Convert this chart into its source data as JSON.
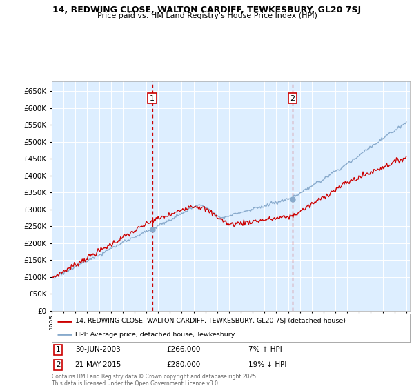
{
  "title": "14, REDWING CLOSE, WALTON CARDIFF, TEWKESBURY, GL20 7SJ",
  "subtitle": "Price paid vs. HM Land Registry's House Price Index (HPI)",
  "sale1_date": "30-JUN-2003",
  "sale1_price": 266000,
  "sale1_hpi_pct": "7% ↑ HPI",
  "sale2_date": "21-MAY-2015",
  "sale2_price": 280000,
  "sale2_hpi_pct": "19% ↓ HPI",
  "legend_line1": "14, REDWING CLOSE, WALTON CARDIFF, TEWKESBURY, GL20 7SJ (detached house)",
  "legend_line2": "HPI: Average price, detached house, Tewkesbury",
  "footer": "Contains HM Land Registry data © Crown copyright and database right 2025.\nThis data is licensed under the Open Government Licence v3.0.",
  "line_color_property": "#cc0000",
  "line_color_hpi": "#88aacc",
  "background_color": "#ddeeff",
  "grid_color": "#ffffff",
  "ylim": [
    0,
    680000
  ],
  "ytick_step": 50000,
  "xstart_year": 1995,
  "xend_year": 2025,
  "sale1_year": 2003.5,
  "sale2_year": 2015.37,
  "vline_color": "#cc0000",
  "marker_color": "#88aacc"
}
